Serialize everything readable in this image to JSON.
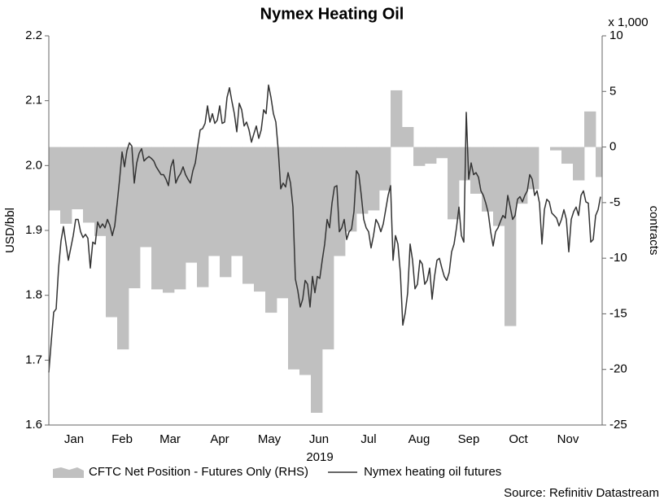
{
  "chart_data": {
    "type": "line",
    "title": "Nymex Heating Oil",
    "ylabel": "USD/bbl",
    "y2label": "contracts",
    "y2unit": "x 1,000",
    "xlabel": "2019",
    "source": "Source: Refinitiv Datastream",
    "xlim": [
      0,
      340
    ],
    "xticks": [
      {
        "value": 15.5,
        "label": "Jan"
      },
      {
        "value": 45,
        "label": "Feb"
      },
      {
        "value": 74.5,
        "label": "Mar"
      },
      {
        "value": 105,
        "label": "Apr"
      },
      {
        "value": 135.5,
        "label": "May"
      },
      {
        "value": 166,
        "label": "Jun"
      },
      {
        "value": 196.5,
        "label": "Jul"
      },
      {
        "value": 227.5,
        "label": "Aug"
      },
      {
        "value": 258,
        "label": "Sep"
      },
      {
        "value": 288.5,
        "label": "Oct"
      },
      {
        "value": 319,
        "label": "Nov"
      }
    ],
    "ylim": [
      1.6,
      2.2
    ],
    "yticks": [
      1.6,
      1.7,
      1.8,
      1.9,
      {
        "value": 2,
        "label": "2.0"
      },
      2.1,
      2.2
    ],
    "y2lim": [
      -25,
      10
    ],
    "y2ticks": [
      -25,
      -20,
      -15,
      -10,
      -5,
      0,
      5,
      10
    ],
    "series": [
      {
        "name": "CFTC Net Position - Futures Only (RHS)",
        "type": "area",
        "step": true,
        "axis": "y2",
        "color": "#c0c0c0",
        "x": [
          0,
          7,
          14,
          21,
          28,
          35,
          42,
          49,
          56,
          63,
          70,
          77,
          84,
          91,
          98,
          105,
          112,
          119,
          126,
          133,
          140,
          147,
          154,
          161,
          168,
          175,
          182,
          189,
          196,
          203,
          210,
          217,
          224,
          231,
          238,
          245,
          252,
          259,
          266,
          273,
          280,
          287,
          294,
          301,
          308,
          315,
          322,
          329,
          336
        ],
        "values": [
          -5.7,
          -6.9,
          -5.6,
          -6.8,
          -8.0,
          -15.3,
          -18.2,
          -12.7,
          -9.0,
          -12.8,
          -13.1,
          -12.8,
          -10.4,
          -12.6,
          -9.8,
          -11.7,
          -9.8,
          -12.3,
          -13.0,
          -14.9,
          -13.6,
          -20.0,
          -20.5,
          -23.9,
          -18.2,
          -9.8,
          -7.6,
          -6.0,
          -5.7,
          -3.9,
          5.1,
          1.8,
          -1.7,
          -1.5,
          -1.0,
          -6.5,
          -3.0,
          -4.2,
          -5.8,
          -7.1,
          -16.1,
          -5.1,
          -3.8,
          0,
          -0.3,
          -1.5,
          -3.0,
          3.2,
          -2.7
        ]
      },
      {
        "name": "Nymex heating oil futures",
        "type": "line",
        "color": "#333333",
        "x": [
          0,
          1.5,
          3,
          4.5,
          6,
          7.5,
          9,
          10.5,
          12,
          13.5,
          15,
          16.5,
          18,
          19.5,
          21,
          22.5,
          24,
          25.5,
          27,
          28.5,
          30,
          31.5,
          33,
          34.5,
          36,
          37.5,
          39,
          40.5,
          42,
          43.5,
          45,
          46.5,
          48,
          49.5,
          51,
          52.5,
          54,
          55.5,
          57,
          58.5,
          60,
          61.5,
          63,
          64.5,
          66,
          67.5,
          69,
          70.5,
          72,
          73.5,
          75,
          76.5,
          78,
          79.5,
          81,
          82.5,
          84,
          85.5,
          87,
          88.5,
          90,
          91.5,
          93,
          94.5,
          96,
          97.5,
          99,
          100.5,
          102,
          103.5,
          105,
          106.5,
          108,
          109.5,
          111,
          112.5,
          114,
          115.5,
          117,
          118.5,
          120,
          121.5,
          123,
          124.5,
          126,
          127.5,
          129,
          130.5,
          132,
          133.5,
          135,
          136.5,
          138,
          139.5,
          141,
          142.5,
          144,
          145.5,
          147,
          148.5,
          150,
          151.5,
          153,
          154.5,
          156,
          157.5,
          159,
          160.5,
          162,
          163.5,
          165,
          166.5,
          168,
          169.5,
          171,
          172.5,
          174,
          175.5,
          177,
          178.5,
          180,
          181.5,
          183,
          184.5,
          186,
          187.5,
          189,
          190.5,
          192,
          193.5,
          195,
          196.5,
          198,
          199.5,
          201,
          202.5,
          204,
          205.5,
          207,
          208.5,
          210,
          211.5,
          213,
          214.5,
          216,
          217.5,
          219,
          220.5,
          222,
          223.5,
          225,
          226.5,
          228,
          229.5,
          231,
          232.5,
          234,
          235.5,
          237,
          238.5,
          240,
          241.5,
          243,
          244.5,
          246,
          247.5,
          249,
          250.5,
          252,
          253.5,
          255,
          256.5,
          258,
          259.5,
          261,
          262.5,
          264,
          265.5,
          267,
          268.5,
          270,
          271.5,
          273,
          274.5,
          276,
          277.5,
          279,
          280.5,
          282,
          283.5,
          285,
          286.5,
          288,
          289.5,
          291,
          292.5,
          294,
          295.5,
          297,
          298.5,
          300,
          301.5,
          303,
          304.5,
          306,
          307.5,
          309,
          310.5,
          312,
          313.5,
          315,
          316.5,
          318,
          319.5,
          321,
          322.5,
          324,
          325.5,
          327,
          328.5,
          330,
          331.5,
          333,
          334.5,
          336,
          337.5,
          339
        ],
        "values": [
          1.681,
          1.729,
          1.774,
          1.779,
          1.842,
          1.884,
          1.906,
          1.88,
          1.854,
          1.873,
          1.892,
          1.917,
          1.917,
          1.898,
          1.889,
          1.894,
          1.888,
          1.842,
          1.882,
          1.879,
          1.913,
          1.904,
          1.91,
          1.904,
          1.917,
          1.908,
          1.892,
          1.907,
          1.942,
          1.979,
          2.021,
          1.998,
          2.023,
          2.035,
          2.03,
          1.973,
          2.004,
          2.019,
          2.026,
          2.007,
          2.011,
          2.014,
          2.011,
          2.007,
          1.998,
          1.992,
          1.986,
          1.986,
          1.979,
          1.969,
          1.998,
          2.009,
          1.973,
          1.982,
          1.988,
          1.998,
          1.986,
          1.979,
          1.973,
          1.992,
          2.004,
          2.03,
          2.055,
          2.057,
          2.065,
          2.092,
          2.067,
          2.08,
          2.065,
          2.07,
          2.092,
          2.065,
          2.067,
          2.105,
          2.12,
          2.099,
          2.08,
          2.052,
          2.096,
          2.086,
          2.061,
          2.067,
          2.055,
          2.036,
          2.049,
          2.061,
          2.042,
          2.055,
          2.086,
          2.08,
          2.124,
          2.105,
          2.08,
          2.067,
          2.023,
          1.964,
          1.973,
          1.967,
          1.989,
          1.973,
          1.936,
          1.825,
          1.807,
          1.782,
          1.794,
          1.823,
          1.817,
          1.782,
          1.829,
          1.804,
          1.829,
          1.826,
          1.854,
          1.879,
          1.917,
          1.904,
          1.942,
          1.967,
          1.969,
          1.898,
          1.904,
          1.917,
          1.886,
          1.898,
          1.902,
          1.929,
          1.992,
          1.986,
          1.954,
          1.917,
          1.904,
          1.898,
          1.873,
          1.892,
          1.917,
          1.91,
          1.898,
          1.91,
          1.932,
          1.954,
          1.969,
          1.854,
          1.892,
          1.879,
          1.835,
          1.754,
          1.773,
          1.804,
          1.879,
          1.854,
          1.81,
          1.817,
          1.854,
          1.848,
          1.817,
          1.823,
          1.842,
          1.794,
          1.829,
          1.854,
          1.857,
          1.842,
          1.829,
          1.823,
          1.835,
          1.867,
          1.879,
          1.904,
          1.936,
          1.892,
          1.882,
          2.082,
          1.979,
          2.004,
          1.986,
          1.989,
          1.982,
          1.961,
          1.954,
          1.942,
          1.927,
          1.898,
          1.876,
          1.898,
          1.904,
          1.914,
          1.923,
          1.919,
          1.954,
          1.936,
          1.917,
          1.923,
          1.948,
          1.952,
          1.944,
          1.954,
          1.961,
          1.986,
          1.979,
          1.954,
          1.961,
          1.942,
          1.879,
          1.932,
          1.948,
          1.944,
          1.927,
          1.923,
          1.919,
          1.907,
          1.917,
          1.932,
          1.917,
          1.867,
          1.917,
          1.929,
          1.936,
          1.923,
          1.954,
          1.961,
          1.944,
          1.942,
          1.882,
          1.886,
          1.923,
          1.932,
          1.952
        ]
      }
    ]
  }
}
